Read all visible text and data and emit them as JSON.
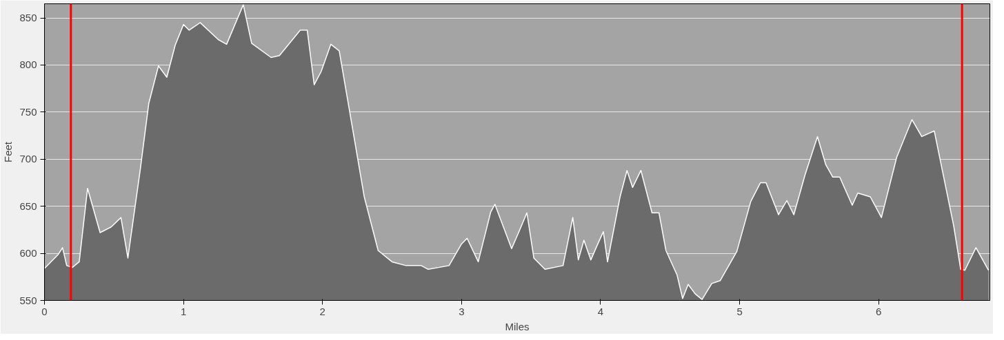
{
  "chart_data": {
    "type": "area",
    "xlabel": "Miles",
    "ylabel": "Feet",
    "xlim": [
      0,
      6.8
    ],
    "ylim": [
      550,
      865
    ],
    "xticks": [
      0,
      1,
      2,
      3,
      4,
      5,
      6
    ],
    "yticks": [
      550,
      600,
      650,
      700,
      750,
      800,
      850
    ],
    "grid": "y",
    "series": [
      {
        "color": "#6b6b6b",
        "x": [
          0,
          0.1,
          0.13,
          0.16,
          0.2,
          0.25,
          0.31,
          0.4,
          0.48,
          0.55,
          0.6,
          0.69,
          0.75,
          0.82,
          0.88,
          0.94,
          1.0,
          1.04,
          1.12,
          1.25,
          1.31,
          1.43,
          1.49,
          1.63,
          1.69,
          1.84,
          1.89,
          1.94,
          1.99,
          2.06,
          2.12,
          2.19,
          2.3,
          2.4,
          2.5,
          2.6,
          2.71,
          2.76,
          2.91,
          3.0,
          3.04,
          3.12,
          3.21,
          3.24,
          3.36,
          3.41,
          3.47,
          3.52,
          3.6,
          3.73,
          3.8,
          3.84,
          3.88,
          3.93,
          3.98,
          4.02,
          4.05,
          4.14,
          4.19,
          4.23,
          4.29,
          4.37,
          4.42,
          4.47,
          4.55,
          4.59,
          4.63,
          4.68,
          4.73,
          4.8,
          4.86,
          4.98,
          5.08,
          5.15,
          5.19,
          5.28,
          5.34,
          5.39,
          5.47,
          5.56,
          5.62,
          5.67,
          5.72,
          5.81,
          5.85,
          5.94,
          6.02,
          6.13,
          6.24,
          6.31,
          6.4,
          6.54,
          6.59,
          6.62,
          6.7,
          6.79
        ],
        "values": [
          584,
          599,
          606,
          587,
          585,
          591,
          669,
          622,
          628,
          638,
          595,
          690,
          759,
          799,
          787,
          821,
          843,
          837,
          845,
          827,
          822,
          864,
          823,
          808,
          810,
          837,
          837,
          779,
          793,
          822,
          815,
          755,
          660,
          603,
          591,
          587,
          587,
          583,
          587,
          610,
          616,
          591,
          644,
          652,
          605,
          622,
          643,
          595,
          583,
          587,
          638,
          593,
          614,
          593,
          610,
          623,
          591,
          660,
          688,
          670,
          688,
          643,
          643,
          603,
          577,
          552,
          567,
          557,
          551,
          568,
          571,
          602,
          655,
          675,
          675,
          641,
          656,
          641,
          683,
          724,
          694,
          681,
          681,
          651,
          664,
          660,
          638,
          702,
          742,
          724,
          730,
          629,
          583,
          582,
          606,
          582
        ]
      }
    ],
    "ref_lines": [
      {
        "axis": "x",
        "value": 0.19,
        "color": "#ff0000"
      },
      {
        "axis": "x",
        "value": 6.6,
        "color": "#ff0000"
      }
    ]
  }
}
